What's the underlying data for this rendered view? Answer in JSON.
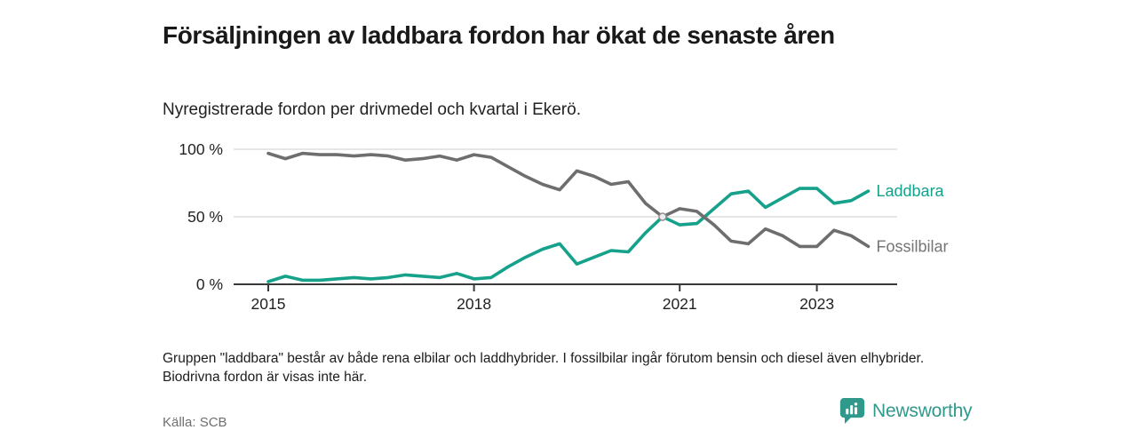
{
  "header": {
    "title": "Försäljningen av laddbara fordon har ökat de senaste åren",
    "subtitle": "Nyregistrerade fordon per drivmedel och kvartal i Ekerö."
  },
  "chart_data": {
    "type": "line",
    "title": "Nyregistrerade fordon per drivmedel och kvartal i Ekerö",
    "xlabel": "",
    "ylabel": "",
    "ylim": [
      0,
      100
    ],
    "grid": "horizontal-gridlines",
    "legend": "line-end-labels",
    "y_axis": {
      "values": [
        0,
        50,
        100
      ],
      "labels": [
        "0 %",
        "50 %",
        "100 %"
      ]
    },
    "x_axis": {
      "unit": "quarter",
      "ticks": [
        {
          "label": "2015",
          "index": 0
        },
        {
          "label": "2018",
          "index": 12
        },
        {
          "label": "2021",
          "index": 24
        },
        {
          "label": "2023",
          "index": 32
        }
      ]
    },
    "x_categories": [
      "2015 Q1",
      "2015 Q2",
      "2015 Q3",
      "2015 Q4",
      "2016 Q1",
      "2016 Q2",
      "2016 Q3",
      "2016 Q4",
      "2017 Q1",
      "2017 Q2",
      "2017 Q3",
      "2017 Q4",
      "2018 Q1",
      "2018 Q2",
      "2018 Q3",
      "2018 Q4",
      "2019 Q1",
      "2019 Q2",
      "2019 Q3",
      "2019 Q4",
      "2020 Q1",
      "2020 Q2",
      "2020 Q3",
      "2020 Q4",
      "2021 Q1",
      "2021 Q2",
      "2021 Q3",
      "2021 Q4",
      "2022 Q1",
      "2022 Q2",
      "2022 Q3",
      "2022 Q4",
      "2023 Q1",
      "2023 Q2",
      "2023 Q3",
      "2023 Q4"
    ],
    "series": [
      {
        "name": "Laddbara",
        "color": "#16a18b",
        "label_color": "#16a18b",
        "values": [
          2,
          6,
          3,
          3,
          4,
          5,
          4,
          5,
          7,
          6,
          5,
          8,
          4,
          5,
          13,
          20,
          26,
          30,
          15,
          20,
          25,
          24,
          38,
          50,
          44,
          45,
          56,
          67,
          69,
          57,
          64,
          71,
          71,
          60,
          62,
          69
        ]
      },
      {
        "name": "Fossilbilar",
        "color": "#6e6e6e",
        "label_color": "#757575",
        "values": [
          97,
          93,
          97,
          96,
          96,
          95,
          96,
          95,
          92,
          93,
          95,
          92,
          96,
          94,
          87,
          80,
          74,
          70,
          84,
          80,
          74,
          76,
          60,
          50,
          56,
          54,
          44,
          32,
          30,
          41,
          36,
          28,
          28,
          40,
          36,
          28
        ]
      }
    ],
    "highlight_point": {
      "series": "Laddbara",
      "index": 23,
      "value": 50
    }
  },
  "footnote": {
    "text": "Gruppen \"laddbara\" består av både rena elbilar och laddhybrider. I fossilbilar ingår förutom bensin och diesel även elhybrider. Biodrivna fordon är visas inte här."
  },
  "source": {
    "text": "Källa: SCB"
  },
  "logo": {
    "text": "Newsworthy",
    "color": "#2f998c",
    "icon": "bar-chart-speech-bubble-icon"
  }
}
